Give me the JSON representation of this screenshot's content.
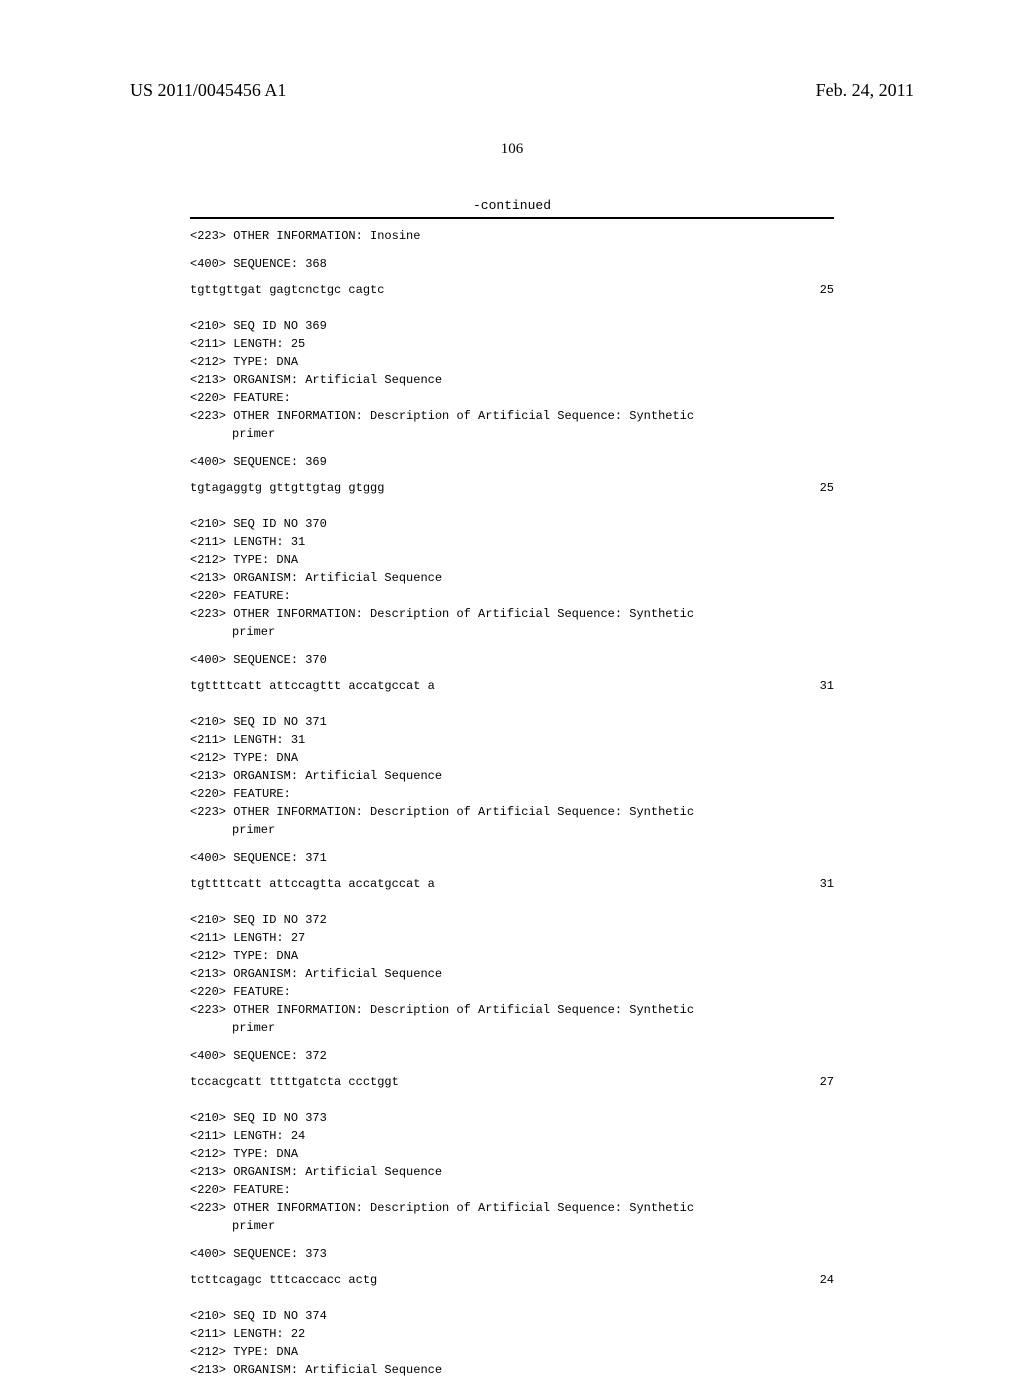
{
  "header": {
    "publication_number": "US 2011/0045456 A1",
    "date": "Feb. 24, 2011"
  },
  "page_number": "106",
  "continued_label": "-continued",
  "intro_line": "<223> OTHER INFORMATION: Inosine",
  "seq368": {
    "seqline": "<400> SEQUENCE: 368",
    "sequence": "tgttgttgat gagtcnctgc cagtc",
    "length_num": "25"
  },
  "entries": [
    {
      "l210": "<210> SEQ ID NO 369",
      "l211": "<211> LENGTH: 25",
      "l212": "<212> TYPE: DNA",
      "l213": "<213> ORGANISM: Artificial Sequence",
      "l220": "<220> FEATURE:",
      "l223": "<223> OTHER INFORMATION: Description of Artificial Sequence: Synthetic",
      "l223b": "primer",
      "l400": "<400> SEQUENCE: 369",
      "sequence": "tgtagaggtg gttgttgtag gtggg",
      "length_num": "25"
    },
    {
      "l210": "<210> SEQ ID NO 370",
      "l211": "<211> LENGTH: 31",
      "l212": "<212> TYPE: DNA",
      "l213": "<213> ORGANISM: Artificial Sequence",
      "l220": "<220> FEATURE:",
      "l223": "<223> OTHER INFORMATION: Description of Artificial Sequence: Synthetic",
      "l223b": "primer",
      "l400": "<400> SEQUENCE: 370",
      "sequence": "tgttttcatt attccagttt accatgccat a",
      "length_num": "31"
    },
    {
      "l210": "<210> SEQ ID NO 371",
      "l211": "<211> LENGTH: 31",
      "l212": "<212> TYPE: DNA",
      "l213": "<213> ORGANISM: Artificial Sequence",
      "l220": "<220> FEATURE:",
      "l223": "<223> OTHER INFORMATION: Description of Artificial Sequence: Synthetic",
      "l223b": "primer",
      "l400": "<400> SEQUENCE: 371",
      "sequence": "tgttttcatt attccagtta accatgccat a",
      "length_num": "31"
    },
    {
      "l210": "<210> SEQ ID NO 372",
      "l211": "<211> LENGTH: 27",
      "l212": "<212> TYPE: DNA",
      "l213": "<213> ORGANISM: Artificial Sequence",
      "l220": "<220> FEATURE:",
      "l223": "<223> OTHER INFORMATION: Description of Artificial Sequence: Synthetic",
      "l223b": "primer",
      "l400": "<400> SEQUENCE: 372",
      "sequence": "tccacgcatt ttttgatcta ccctggt",
      "length_num": "27"
    },
    {
      "l210": "<210> SEQ ID NO 373",
      "l211": "<211> LENGTH: 24",
      "l212": "<212> TYPE: DNA",
      "l213": "<213> ORGANISM: Artificial Sequence",
      "l220": "<220> FEATURE:",
      "l223": "<223> OTHER INFORMATION: Description of Artificial Sequence: Synthetic",
      "l223b": "primer",
      "l400": "<400> SEQUENCE: 373",
      "sequence": "tcttcagagc tttcaccacc actg",
      "length_num": "24"
    }
  ],
  "tail": {
    "l210": "<210> SEQ ID NO 374",
    "l211": "<211> LENGTH: 22",
    "l212": "<212> TYPE: DNA",
    "l213": "<213> ORGANISM: Artificial Sequence"
  }
}
